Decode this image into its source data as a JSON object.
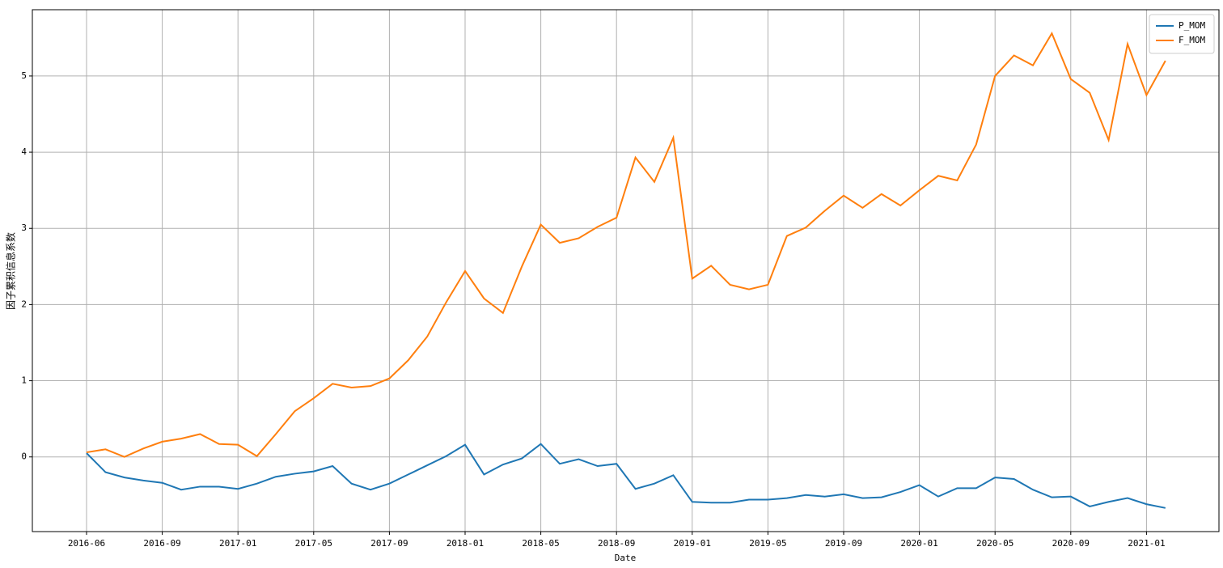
{
  "chart_data": {
    "type": "line",
    "xlabel": "Date",
    "ylabel": "因子累积信息系数",
    "categories": [
      "2016-06",
      null,
      null,
      null,
      "2016-09",
      null,
      null,
      null,
      "2017-01",
      null,
      null,
      null,
      "2017-05",
      null,
      null,
      null,
      "2017-09",
      null,
      null,
      null,
      "2018-01",
      null,
      null,
      null,
      "2018-05",
      null,
      null,
      null,
      "2018-09",
      null,
      null,
      null,
      "2019-01",
      null,
      null,
      null,
      "2019-05",
      null,
      null,
      null,
      "2019-09",
      null,
      null,
      null,
      "2020-01",
      null,
      null,
      null,
      "2020-05",
      null,
      null,
      null,
      "2020-09",
      null,
      null,
      null,
      "2021-01",
      null
    ],
    "series": [
      {
        "name": "P_MOM",
        "color": "#1f77b4",
        "values": [
          0.05,
          -0.2,
          -0.27,
          -0.31,
          -0.34,
          -0.43,
          -0.39,
          -0.39,
          -0.42,
          -0.35,
          -0.26,
          -0.22,
          -0.19,
          -0.12,
          -0.35,
          -0.43,
          -0.35,
          -0.23,
          -0.11,
          0.01,
          0.16,
          -0.23,
          -0.1,
          -0.02,
          0.17,
          -0.09,
          -0.03,
          -0.12,
          -0.09,
          -0.42,
          -0.35,
          -0.24,
          -0.59,
          -0.6,
          -0.6,
          -0.56,
          -0.56,
          -0.54,
          -0.5,
          -0.52,
          -0.49,
          -0.54,
          -0.53,
          -0.46,
          -0.37,
          -0.52,
          -0.41,
          -0.41,
          -0.27,
          -0.29,
          -0.43,
          -0.53,
          -0.52,
          -0.65,
          -0.59,
          -0.54,
          -0.62,
          -0.67
        ]
      },
      {
        "name": "F_MOM",
        "color": "#ff7f0e",
        "values": [
          0.06,
          0.1,
          0.0,
          0.11,
          0.2,
          0.24,
          0.3,
          0.17,
          0.16,
          0.01,
          0.3,
          0.6,
          0.77,
          0.96,
          0.91,
          0.93,
          1.03,
          1.27,
          1.58,
          2.03,
          2.44,
          2.08,
          1.89,
          2.5,
          3.05,
          2.81,
          2.87,
          3.02,
          3.14,
          3.93,
          3.61,
          4.19,
          2.34,
          2.51,
          2.26,
          2.2,
          2.26,
          2.9,
          3.01,
          3.23,
          3.43,
          3.27,
          3.45,
          3.3,
          3.5,
          3.69,
          3.63,
          4.1,
          5.0,
          5.27,
          5.14,
          5.56,
          4.96,
          4.78,
          4.16,
          5.42,
          4.75,
          5.2
        ]
      }
    ],
    "ylim": [
      -0.98,
      5.87
    ],
    "yticks": [
      0,
      1,
      2,
      3,
      4,
      5
    ],
    "grid": true,
    "legend": "upper right"
  }
}
